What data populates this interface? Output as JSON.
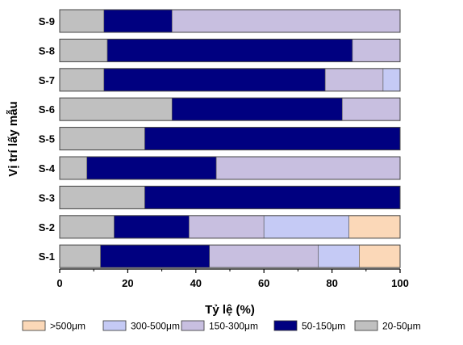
{
  "chart_data": {
    "type": "bar",
    "orientation": "horizontal",
    "stacked": true,
    "categories": [
      "S-9",
      "S-8",
      "S-7",
      "S-6",
      "S-5",
      "S-4",
      "S-3",
      "S-2",
      "S-1"
    ],
    "xlabel": "Tỷ lệ (%)",
    "ylabel": "Vị trí lấy mẫu",
    "xlim": [
      0,
      100
    ],
    "xticks": [
      "0",
      "20",
      "40",
      "60",
      "80",
      "100"
    ],
    "grid": false,
    "legend_position": "bottom",
    "series": [
      {
        "name": "20-50μm",
        "color": "#c0c0c0",
        "values": [
          13,
          14,
          13,
          33,
          25,
          8,
          25,
          16,
          12
        ]
      },
      {
        "name": "50-150μm",
        "color": "#000080",
        "values": [
          20,
          72,
          65,
          50,
          75,
          38,
          75,
          22,
          32
        ]
      },
      {
        "name": "150-300μm",
        "color": "#c8bfe0",
        "values": [
          67,
          14,
          17,
          17,
          0,
          54,
          0,
          22,
          32
        ]
      },
      {
        "name": "300-500μm",
        "color": "#c5caf5",
        "values": [
          0,
          0,
          5,
          0,
          0,
          0,
          0,
          25,
          12
        ]
      },
      {
        "name": ">500μm",
        "color": "#fbd8b8",
        "values": [
          0,
          0,
          0,
          0,
          0,
          0,
          0,
          15,
          12
        ]
      }
    ],
    "legend_order": [
      ">500μm",
      "300-500μm",
      "150-300μm",
      "50-150μm",
      "20-50μm"
    ]
  }
}
